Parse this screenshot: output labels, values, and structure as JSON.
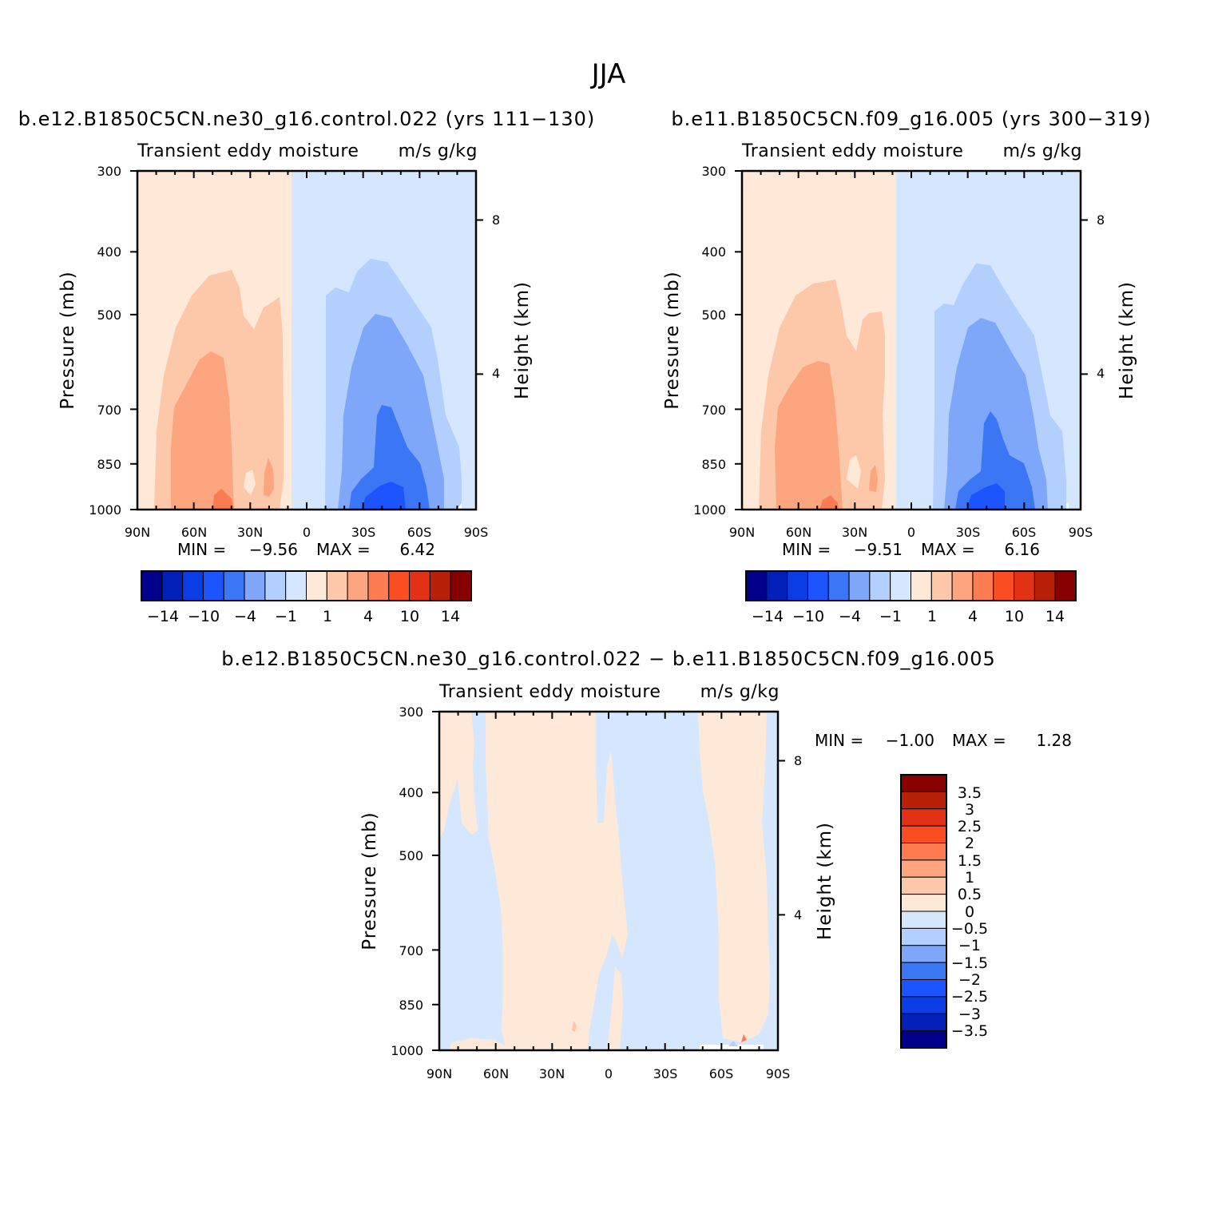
{
  "chart_data": {
    "type": "heatmap",
    "title": "JJA",
    "colors": {
      "blue_scale": [
        "#00008b",
        "#0020b8",
        "#0a3de6",
        "#1c55ff",
        "#3b76f5",
        "#7ea6f9",
        "#b3cffd",
        "#d5e7fe"
      ],
      "red_scale": [
        "#fee9d9",
        "#fdc7aa",
        "#fca57f",
        "#fc7b50",
        "#fa4e22",
        "#e23114",
        "#b82108",
        "#880000"
      ]
    },
    "panels": [
      {
        "title": "b.e12.B1850C5CN.ne30_g16.control.022 (yrs 111−130)",
        "subtitle_left": "Transient eddy moisture",
        "subtitle_right": "m/s g/kg",
        "ylabel": "Pressure (mb)",
        "ylabel_right": "Height (km)",
        "y_ticks": [
          "300",
          "400",
          "500",
          "700",
          "850",
          "1000"
        ],
        "x_ticks": [
          "90N",
          "60N",
          "30N",
          "0",
          "30S",
          "60S",
          "90S"
        ],
        "height_ticks": [
          "8",
          "4"
        ],
        "min_label": "MIN =",
        "min_value": "−9.56",
        "max_label": "MAX =",
        "max_value": "6.42",
        "colorbar_ticks": [
          "−14",
          "−10",
          "−4",
          "−1",
          "1",
          "4",
          "10",
          "14"
        ]
      },
      {
        "title": "b.e11.B1850C5CN.f09_g16.005 (yrs 300−319)",
        "subtitle_left": "Transient eddy moisture",
        "subtitle_right": "m/s g/kg",
        "ylabel": "Pressure (mb)",
        "ylabel_right": "Height (km)",
        "y_ticks": [
          "300",
          "400",
          "500",
          "700",
          "850",
          "1000"
        ],
        "x_ticks": [
          "90N",
          "60N",
          "30N",
          "0",
          "30S",
          "60S",
          "90S"
        ],
        "height_ticks": [
          "8",
          "4"
        ],
        "min_label": "MIN =",
        "min_value": "−9.51",
        "max_label": "MAX =",
        "max_value": "6.16",
        "colorbar_ticks": [
          "−14",
          "−10",
          "−4",
          "−1",
          "1",
          "4",
          "10",
          "14"
        ]
      },
      {
        "title": "b.e12.B1850C5CN.ne30_g16.control.022 − b.e11.B1850C5CN.f09_g16.005",
        "subtitle_left": "Transient eddy moisture",
        "subtitle_right": "m/s g/kg",
        "ylabel": "Pressure (mb)",
        "ylabel_right": "Height (km)",
        "y_ticks": [
          "300",
          "400",
          "500",
          "700",
          "850",
          "1000"
        ],
        "x_ticks": [
          "90N",
          "60N",
          "30N",
          "0",
          "30S",
          "60S",
          "90S"
        ],
        "height_ticks": [
          "8",
          "4"
        ],
        "min_label": "MIN =",
        "min_value": "−1.00",
        "max_label": "MAX =",
        "max_value": "1.28",
        "colorbar_ticks": [
          "3.5",
          "3",
          "2.5",
          "2",
          "1.5",
          "1",
          "0.5",
          "0",
          "−0.5",
          "−1",
          "−1.5",
          "−2",
          "−2.5",
          "−3",
          "−3.5"
        ]
      }
    ]
  }
}
